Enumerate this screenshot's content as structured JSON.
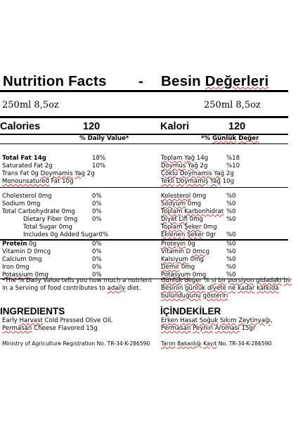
{
  "title": {
    "left": "Nutrition Facts",
    "dash": "-",
    "right": "Besin Değerleri"
  },
  "volume": {
    "left": "250ml 8,5oz",
    "right": "250ml 8,5oz"
  },
  "calories": {
    "left_label": "Calories",
    "left_value": "120",
    "right_label": "Kalori",
    "right_value": "120"
  },
  "daily_value_header": {
    "left": "% Daily Value*",
    "right": "*% Günlük Değer"
  },
  "nutrients_left": [
    {
      "name": "Total Fat 14g",
      "pct": "18%",
      "bold": true
    },
    {
      "name": "Saturated Fat 2g",
      "pct": "10%"
    },
    {
      "name": "Trans Fat 0g Doymamis Yag 2g",
      "pct": ""
    },
    {
      "name": "Monounsatured Fat 10g",
      "pct": ""
    },
    {
      "name": "Cholesterol 0mg",
      "pct": "0%"
    },
    {
      "name": "Sodium 0mg",
      "pct": "0%"
    },
    {
      "name": "Total Carbohydrate 0mg",
      "pct": "0%"
    },
    {
      "name": "Dietary Fiber 0mg",
      "pct": "0%"
    },
    {
      "name": "Total Sugar 0mg",
      "pct": ""
    },
    {
      "name": "Includes 0g Added Sugar",
      "pct": "0%"
    },
    {
      "name": "Protein",
      "suffix": " 0g",
      "pct": "0%",
      "bold": true
    },
    {
      "name": "Vitamin D 0mcg",
      "pct": "0%"
    },
    {
      "name": "Calcium 0mg",
      "pct": "0%"
    },
    {
      "name": "Iron 0mg",
      "pct": "0%"
    },
    {
      "name": "Potassium 0mg",
      "pct": "0%"
    }
  ],
  "nutrients_right": [
    {
      "name": "Toplam Yağ 14g",
      "pct": "%18"
    },
    {
      "name": "Doymus Yağ 2g",
      "pct": "%10"
    },
    {
      "name": "Çoklu Doymamis Yağ 2g",
      "pct": ""
    },
    {
      "name": "Tekli Doymamiş Yağ 10g",
      "pct": ""
    },
    {
      "name": "Kolesterol 0mg",
      "pct": "%0"
    },
    {
      "name": "Sodyum 0mg",
      "pct": "%0"
    },
    {
      "name": "Toplam Karbonhidrat",
      "pct": "%0"
    },
    {
      "name": "Diyet Lifi 0mg",
      "pct": "%0"
    },
    {
      "name": "Toplam Şeker 0mg",
      "pct": ""
    },
    {
      "name": "Eklenen Şeker 0gr",
      "pct": "%0"
    },
    {
      "name": "Proteyin 0g",
      "pct": "%0"
    },
    {
      "name": "Vitamin D 0mcg",
      "pct": "%0"
    },
    {
      "name": "Kalsiyum 0mg",
      "pct": "%0"
    },
    {
      "name": "Demir 0mg",
      "pct": "%0"
    },
    {
      "name": "Potasyum 0mg",
      "pct": "%0"
    }
  ],
  "footnote": {
    "left_1": "*The % Daily Value tells you how much a nutrient",
    "left_2": "in a Serving of food contributes to adaily diet.",
    "right_1": "Günlük değer % si bir porsiyon gidadaki bir",
    "right_2": "Besinin günlük diyete ne kadar katkida",
    "right_3": "bulunduğunu gösteriri"
  },
  "ingredients": {
    "left_heading": "INGREDIENTS",
    "left_line1": "Early Harvast Cold Pressed Olive Oil,",
    "left_line2": "Permasan Cheese Flavored 15g",
    "right_heading": "İÇİNDEKİLER",
    "right_line1": "Erken Hasat Soğuk Sıkım Zeytinyağı,",
    "right_line2": "Permasan Peyniri Aromasi 15gr"
  },
  "registration": {
    "left": "Ministry of Agriculture Registration No. TR-34-K-286590",
    "right": "Tarım Bakanlığı Kayıt No. TR-34-K-286590"
  }
}
